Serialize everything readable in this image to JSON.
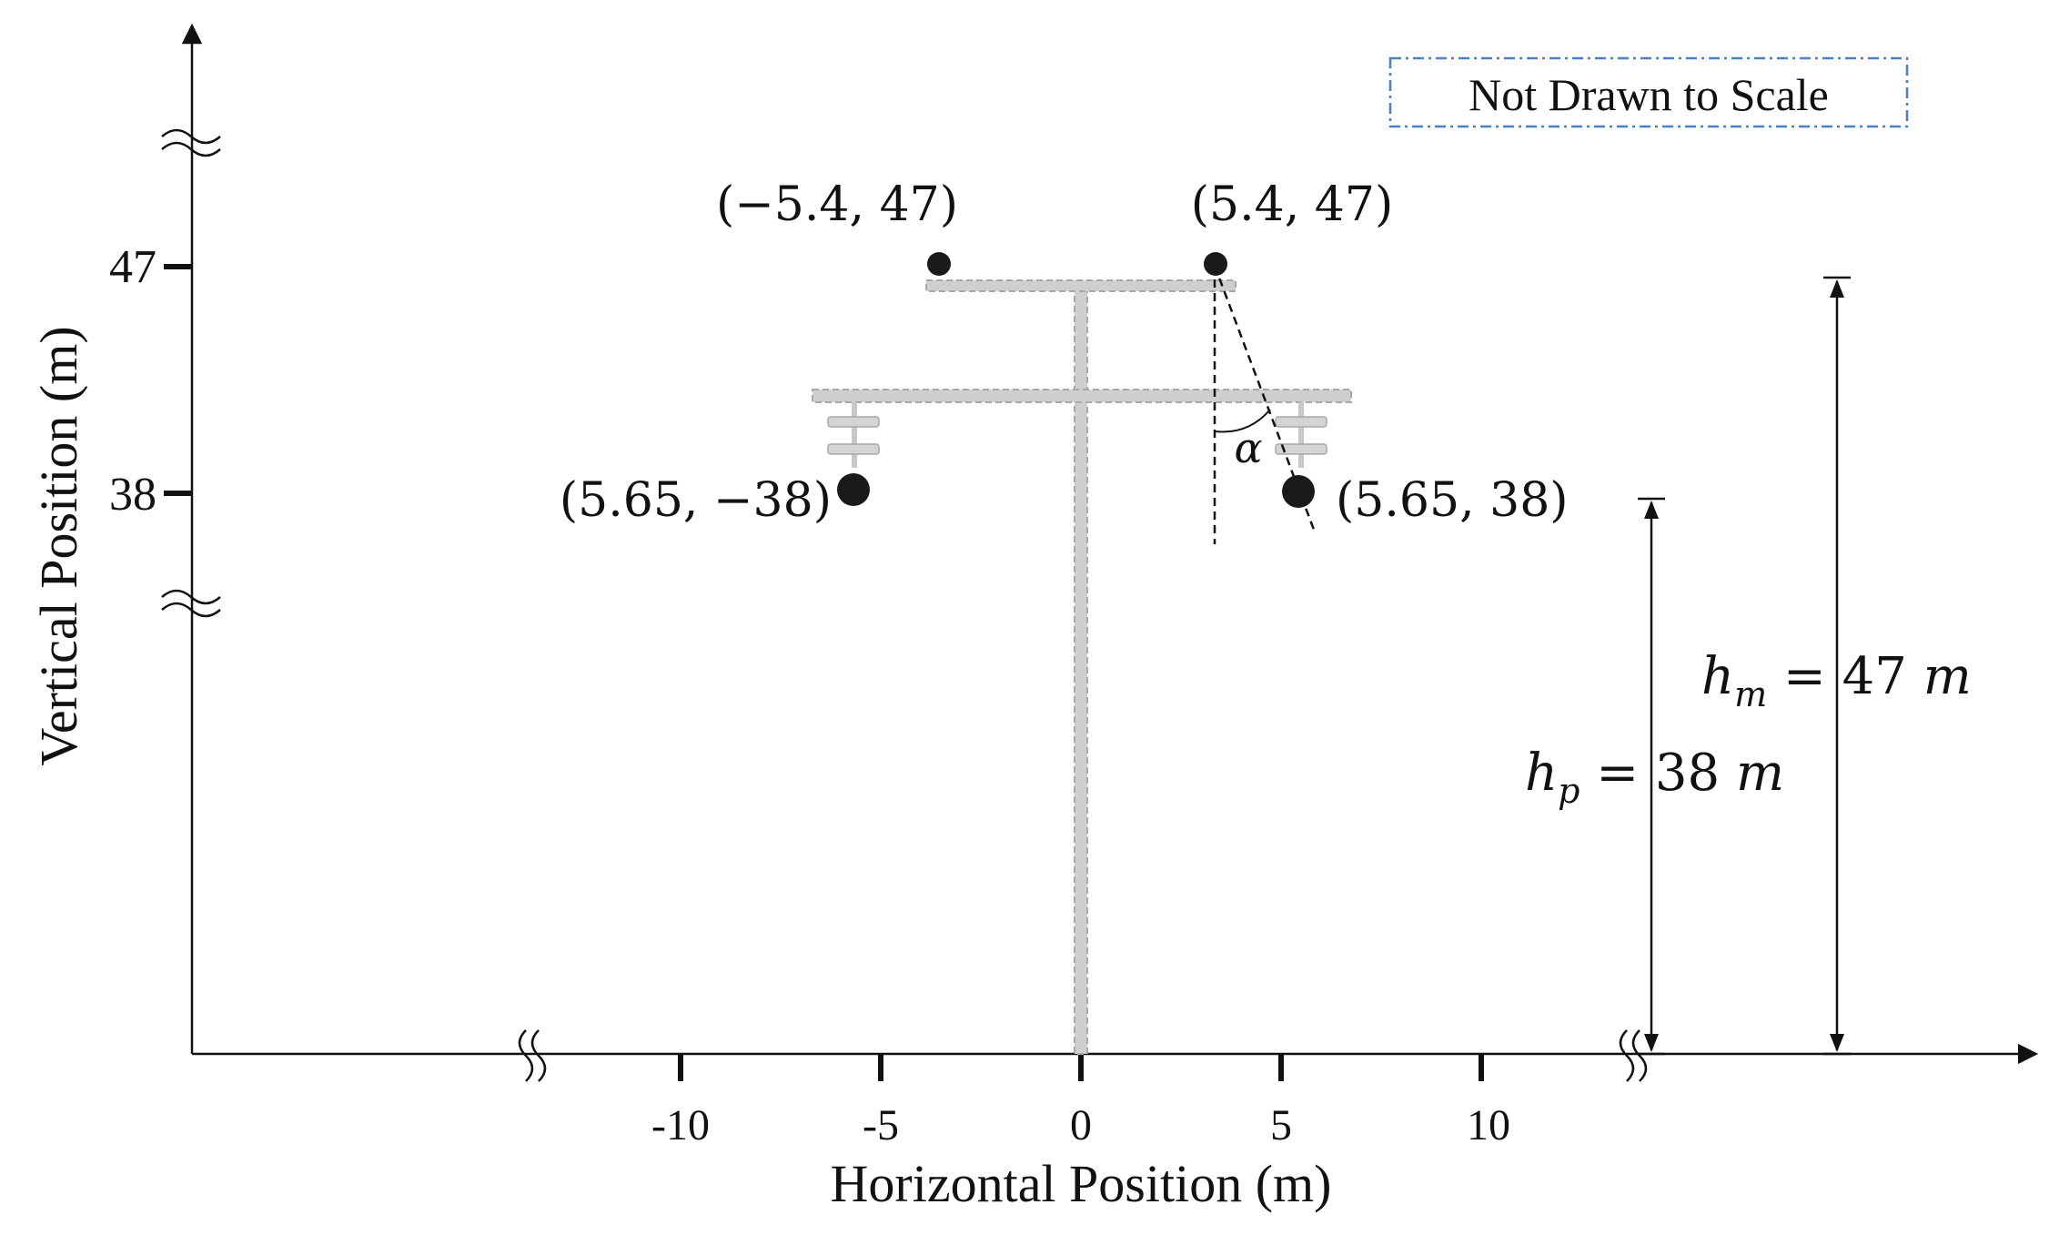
{
  "note": "Not Drawn to Scale",
  "axes": {
    "xlabel": "Horizontal Position (m)",
    "ylabel": "Vertical Position (m)",
    "x_ticks": [
      "-10",
      "-5",
      "0",
      "5",
      "10"
    ],
    "y_ticks": [
      "47",
      "38"
    ]
  },
  "points": [
    {
      "label": "(−5.4, 47)"
    },
    {
      "label": "(5.4, 47)"
    },
    {
      "label": "(5.65, −38)"
    },
    {
      "label": "(5.65, 38)"
    }
  ],
  "angle_label": "α",
  "dimensions": {
    "hm": {
      "sym": "h",
      "sub": "m",
      "rest": " = 47 ",
      "unit": "m"
    },
    "hp": {
      "sym": "h",
      "sub": "p",
      "rest": " = 38 ",
      "unit": "m"
    }
  },
  "colors": {
    "axis": "#111111",
    "tower": "#cfcfcf",
    "tower_edge": "#a8a8a8",
    "note_border": "#4a7fc1",
    "conductor": "#1a1a1a"
  }
}
